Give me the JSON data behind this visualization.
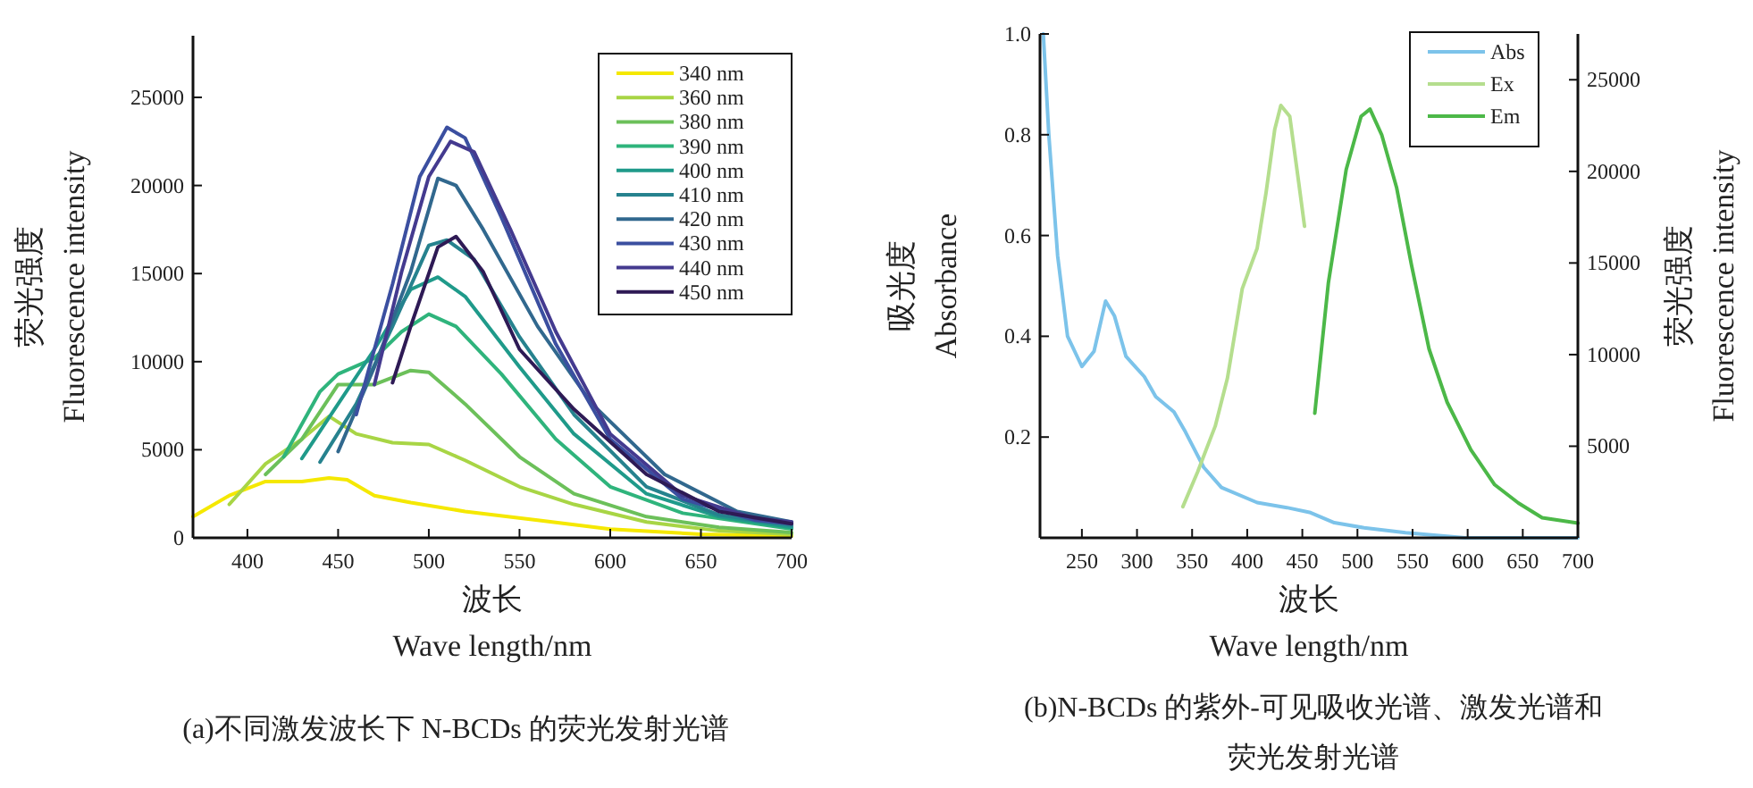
{
  "chart_data": [
    {
      "type": "line",
      "xlabel": "波长\nWave length/nm",
      "ylabel": "荧光强度\nFluorescence intensity",
      "xlim": [
        370,
        700
      ],
      "ylim": [
        0,
        28500
      ],
      "xticks": [
        400,
        450,
        500,
        550,
        600,
        650,
        700
      ],
      "yticks": [
        0,
        5000,
        10000,
        15000,
        20000,
        25000
      ],
      "legend": "top right",
      "line_style": "solid",
      "annotations": [
        "(a)不同激发波长下 N-BCDs 的荧光发射光谱"
      ],
      "series": [
        {
          "name": "340 nm",
          "color": "#f5e800",
          "x": [
            370,
            390,
            410,
            430,
            445,
            455,
            470,
            490,
            520,
            560,
            600,
            650,
            700
          ],
          "values": [
            1200,
            2400,
            3200,
            3200,
            3400,
            3300,
            2400,
            2000,
            1500,
            1000,
            500,
            200,
            100
          ]
        },
        {
          "name": "360 nm",
          "color": "#a8d545",
          "x": [
            390,
            410,
            430,
            445,
            460,
            480,
            500,
            520,
            550,
            580,
            620,
            660,
            700
          ],
          "values": [
            1900,
            4200,
            5600,
            6900,
            5900,
            5400,
            5300,
            4400,
            2900,
            1900,
            900,
            400,
            200
          ]
        },
        {
          "name": "380 nm",
          "color": "#6cc05a",
          "x": [
            410,
            430,
            450,
            470,
            490,
            500,
            520,
            550,
            580,
            620,
            660,
            700
          ],
          "values": [
            3600,
            5600,
            8700,
            8700,
            9500,
            9400,
            7600,
            4600,
            2500,
            1200,
            600,
            300
          ]
        },
        {
          "name": "390 nm",
          "color": "#2fb47c",
          "x": [
            420,
            440,
            450,
            470,
            485,
            500,
            515,
            540,
            570,
            600,
            640,
            700
          ],
          "values": [
            4600,
            8300,
            9300,
            10200,
            11700,
            12700,
            12000,
            9300,
            5600,
            2900,
            1400,
            500
          ]
        },
        {
          "name": "400 nm",
          "color": "#1f9a8a",
          "x": [
            430,
            450,
            470,
            490,
            505,
            520,
            550,
            580,
            620,
            660,
            700
          ],
          "values": [
            4500,
            7600,
            10700,
            14100,
            14800,
            13700,
            9700,
            5900,
            2500,
            1200,
            600
          ]
        },
        {
          "name": "410 nm",
          "color": "#26828e",
          "x": [
            440,
            460,
            480,
            500,
            510,
            525,
            550,
            580,
            620,
            660,
            700
          ],
          "values": [
            4300,
            7600,
            12000,
            16600,
            16900,
            15800,
            11400,
            7000,
            2900,
            1300,
            700
          ]
        },
        {
          "name": "420 nm",
          "color": "#31688e",
          "x": [
            450,
            470,
            490,
            505,
            515,
            530,
            560,
            590,
            630,
            670,
            700
          ],
          "values": [
            4900,
            9700,
            15100,
            20400,
            20000,
            17500,
            12000,
            7600,
            3600,
            1500,
            900
          ]
        },
        {
          "name": "430 nm",
          "color": "#3b4fa0",
          "x": [
            460,
            480,
            495,
            510,
            520,
            540,
            570,
            600,
            640,
            680,
            700
          ],
          "values": [
            7000,
            14400,
            20500,
            23300,
            22700,
            18200,
            11000,
            5600,
            2200,
            1000,
            800
          ]
        },
        {
          "name": "440 nm",
          "color": "#443a8f",
          "x": [
            470,
            485,
            500,
            512,
            525,
            545,
            570,
            600,
            640,
            680,
            700
          ],
          "values": [
            8700,
            15100,
            20500,
            22500,
            21900,
            17500,
            11700,
            5900,
            2400,
            1100,
            900
          ]
        },
        {
          "name": "450 nm",
          "color": "#2e1a55",
          "x": [
            480,
            490,
            505,
            515,
            530,
            550,
            580,
            620,
            660,
            700
          ],
          "values": [
            8800,
            12000,
            16500,
            17100,
            15100,
            10700,
            7300,
            3600,
            1500,
            800
          ]
        }
      ]
    },
    {
      "type": "line",
      "xlabel": "波长\nWave length/nm",
      "ylabel": "吸光度\nAbsorbance",
      "y2label": "荧光强度\nFluorescence intensity",
      "xlim": [
        212,
        700
      ],
      "ylim": [
        0,
        1.0
      ],
      "y2lim": [
        0,
        27500
      ],
      "xticks": [
        250,
        300,
        350,
        400,
        450,
        500,
        550,
        600,
        650,
        700
      ],
      "yticks": [
        0.2,
        0.4,
        0.6,
        0.8,
        {
          "value": 1.0,
          "label": "1.0"
        }
      ],
      "y2ticks": [
        5000,
        10000,
        15000,
        20000,
        25000
      ],
      "legend": "top right",
      "line_style": "solid",
      "annotations": [
        "(b)N-BCDs 的紫外-可见吸收光谱、激发光谱和荧光发射光谱"
      ],
      "series": [
        {
          "name": "Abs",
          "color": "#7cc3ea",
          "x": [
            215,
            220,
            228,
            237,
            250,
            261,
            271.5,
            279.6,
            290,
            306.6,
            317,
            333.5,
            344,
            360.5,
            376.6,
            409,
            436,
            457.5,
            479,
            506,
            543.7,
            597.6,
            700
          ],
          "values": [
            1.0,
            0.8,
            0.56,
            0.4,
            0.34,
            0.37,
            0.47,
            0.44,
            0.36,
            0.32,
            0.28,
            0.25,
            0.21,
            0.14,
            0.1,
            0.07,
            0.06,
            0.05,
            0.03,
            0.02,
            0.01,
            0.0,
            0.0
          ]
        },
        {
          "name": "Ex",
          "color": "#b5de8e",
          "axis": "y2",
          "x": [
            341.6,
            355,
            371,
            382,
            395.5,
            409,
            417,
            425,
            430.5,
            438.6,
            446.7,
            452
          ],
          "values": [
            1700,
            3600,
            6100,
            8700,
            13600,
            15800,
            18800,
            22300,
            23600,
            23000,
            19400,
            17000
          ]
        },
        {
          "name": "Em",
          "color": "#4cb848",
          "axis": "y2",
          "x": [
            461.3,
            473.6,
            489.8,
            503.3,
            511.4,
            522,
            535.6,
            549,
            565,
            581.4,
            603,
            624.5,
            646,
            667.6,
            700
          ],
          "values": [
            6800,
            13900,
            20100,
            23000,
            23400,
            22000,
            19100,
            14900,
            10300,
            7400,
            4800,
            2900,
            1900,
            1100,
            800
          ]
        }
      ]
    }
  ]
}
